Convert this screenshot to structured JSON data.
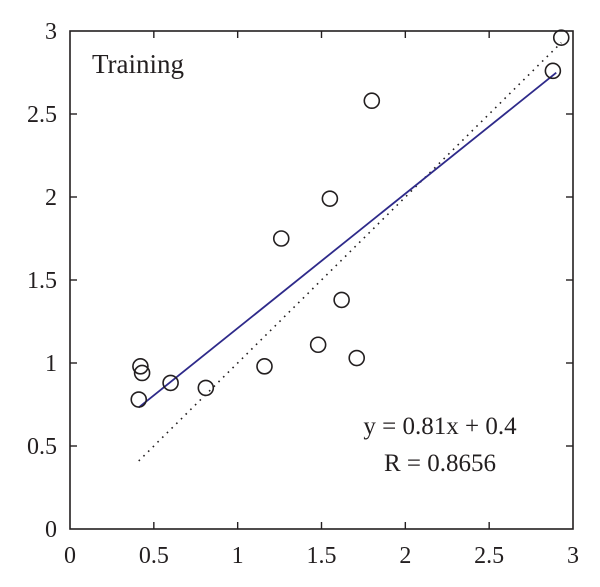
{
  "chart_data": {
    "type": "scatter",
    "legend_label": "Training",
    "legend_placement": "top-left",
    "equation": "y = 0.81x + 0.4",
    "r_text": "R = 0.8656",
    "xlim": [
      0,
      3
    ],
    "ylim": [
      0,
      3
    ],
    "xticks": [
      "0",
      "0.5",
      "1",
      "1.5",
      "2",
      "2.5",
      "3"
    ],
    "yticks": [
      "0",
      "0.5",
      "1",
      "1.5",
      "2",
      "2.5",
      "3"
    ],
    "grid": false,
    "points": [
      {
        "x": 0.42,
        "y": 0.98
      },
      {
        "x": 0.43,
        "y": 0.94
      },
      {
        "x": 0.41,
        "y": 0.78
      },
      {
        "x": 0.6,
        "y": 0.88
      },
      {
        "x": 0.81,
        "y": 0.85
      },
      {
        "x": 1.16,
        "y": 0.98
      },
      {
        "x": 1.26,
        "y": 1.75
      },
      {
        "x": 1.48,
        "y": 1.11
      },
      {
        "x": 1.55,
        "y": 1.99
      },
      {
        "x": 1.62,
        "y": 1.38
      },
      {
        "x": 1.71,
        "y": 1.03
      },
      {
        "x": 1.8,
        "y": 2.58
      },
      {
        "x": 2.88,
        "y": 2.76
      },
      {
        "x": 2.93,
        "y": 2.96
      }
    ],
    "fit_line": {
      "slope": 0.81,
      "intercept": 0.4,
      "x_range": [
        0.41,
        2.9
      ],
      "color": "#2e2a8a"
    },
    "identity_line": {
      "x_range": [
        0.41,
        2.93
      ]
    }
  }
}
